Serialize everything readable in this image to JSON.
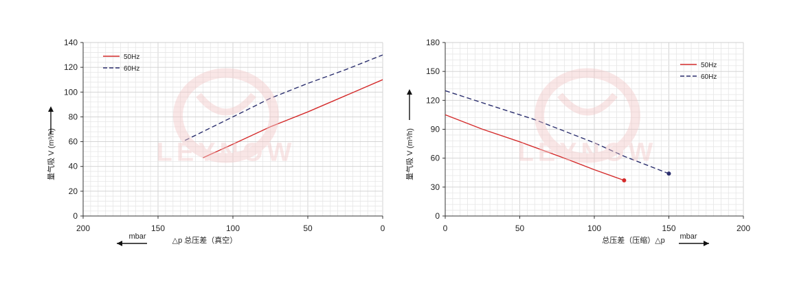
{
  "watermark": {
    "text": "LEYNOW",
    "color": "#f2c9c9"
  },
  "chart_data": [
    {
      "type": "line",
      "xlabel": "△p 总压差（真空）",
      "xunit": "mbar",
      "ylabel": "量气吸 V (m³/h)",
      "xlim": [
        200,
        0
      ],
      "ylim": [
        0,
        140
      ],
      "xticks": [
        200,
        150,
        100,
        50,
        0
      ],
      "yticks": [
        0,
        20,
        40,
        60,
        80,
        100,
        120,
        140
      ],
      "legend_position": "top-left",
      "grid": true,
      "series": [
        {
          "name": "50Hz",
          "color": "#d42a2a",
          "dash": "solid",
          "x": [
            120,
            100,
            75,
            50,
            25,
            0
          ],
          "y": [
            47,
            58,
            72,
            84,
            97,
            110
          ]
        },
        {
          "name": "60Hz",
          "color": "#2b2f6e",
          "dash": "dashed",
          "x": [
            132,
            100,
            75,
            50,
            25,
            0
          ],
          "y": [
            61,
            80,
            95,
            107,
            118,
            130
          ]
        }
      ]
    },
    {
      "type": "line",
      "xlabel": "总压差（压缩）△p",
      "xunit": "mbar",
      "ylabel": "量气吸 V (m³/h)",
      "xlim": [
        0,
        200
      ],
      "ylim": [
        0,
        180
      ],
      "xticks": [
        0,
        50,
        100,
        150,
        200
      ],
      "yticks": [
        0,
        30,
        60,
        90,
        120,
        150,
        180
      ],
      "legend_position": "top-right",
      "grid": true,
      "series": [
        {
          "name": "50Hz",
          "color": "#d42a2a",
          "dash": "solid",
          "x": [
            0,
            25,
            50,
            80,
            100,
            120
          ],
          "y": [
            105,
            90,
            77,
            60,
            48,
            37
          ]
        },
        {
          "name": "60Hz",
          "color": "#2b2f6e",
          "dash": "dashed",
          "x": [
            0,
            30,
            60,
            80,
            100,
            120,
            150
          ],
          "y": [
            130,
            115,
            100,
            88,
            76,
            62,
            44
          ]
        }
      ]
    }
  ]
}
